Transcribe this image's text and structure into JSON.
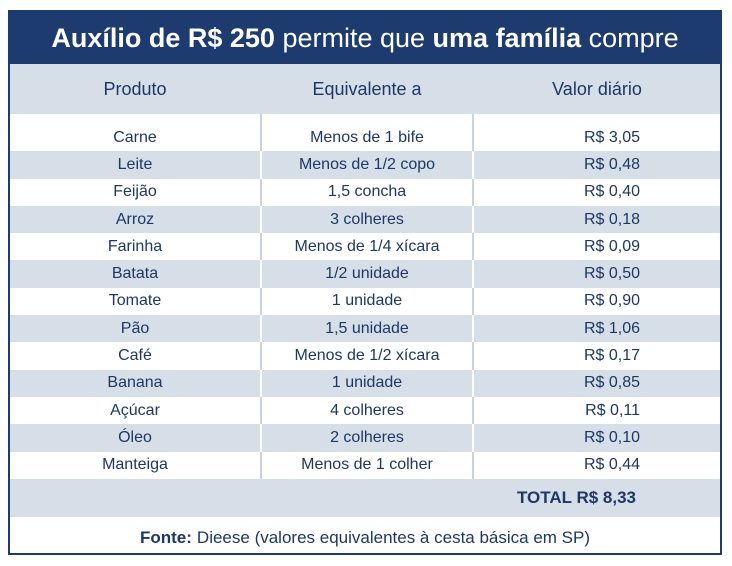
{
  "title": {
    "part1_bold": "Auxílio de R$ 250",
    "part2": "permite que",
    "part3_bold": "uma família",
    "part4": "compre"
  },
  "table": {
    "headers": [
      "Produto",
      "Equivalente a",
      "Valor diário"
    ],
    "rows": [
      {
        "produto": "Carne",
        "equivalente": "Menos de 1 bife",
        "valor": "R$ 3,05"
      },
      {
        "produto": "Leite",
        "equivalente": "Menos de 1/2 copo",
        "valor": "R$ 0,48"
      },
      {
        "produto": "Feijão",
        "equivalente": "1,5 concha",
        "valor": "R$ 0,40"
      },
      {
        "produto": "Arroz",
        "equivalente": "3 colheres",
        "valor": "R$ 0,18"
      },
      {
        "produto": "Farinha",
        "equivalente": "Menos de 1/4 xícara",
        "valor": "R$ 0,09"
      },
      {
        "produto": "Batata",
        "equivalente": "1/2 unidade",
        "valor": "R$ 0,50"
      },
      {
        "produto": "Tomate",
        "equivalente": "1 unidade",
        "valor": "R$ 0,90"
      },
      {
        "produto": "Pão",
        "equivalente": "1,5 unidade",
        "valor": "R$ 1,06"
      },
      {
        "produto": "Café",
        "equivalente": "Menos de 1/2 xícara",
        "valor": "R$ 0,17"
      },
      {
        "produto": "Banana",
        "equivalente": "1 unidade",
        "valor": "R$ 0,85"
      },
      {
        "produto": "Açúcar",
        "equivalente": "4 colheres",
        "valor": "R$ 0,11"
      },
      {
        "produto": "Óleo",
        "equivalente": "2 colheres",
        "valor": "R$ 0,10"
      },
      {
        "produto": "Manteiga",
        "equivalente": "Menos de 1 colher",
        "valor": "R$ 0,44"
      }
    ],
    "total": "TOTAL R$ 8,33"
  },
  "footer": {
    "label": "Fonte:",
    "text": "Dieese (valores equivalentes à cesta básica em SP)"
  },
  "colors": {
    "navy": "#1d3b6e",
    "stripe": "#d6dee7",
    "text": "#1d3766"
  }
}
